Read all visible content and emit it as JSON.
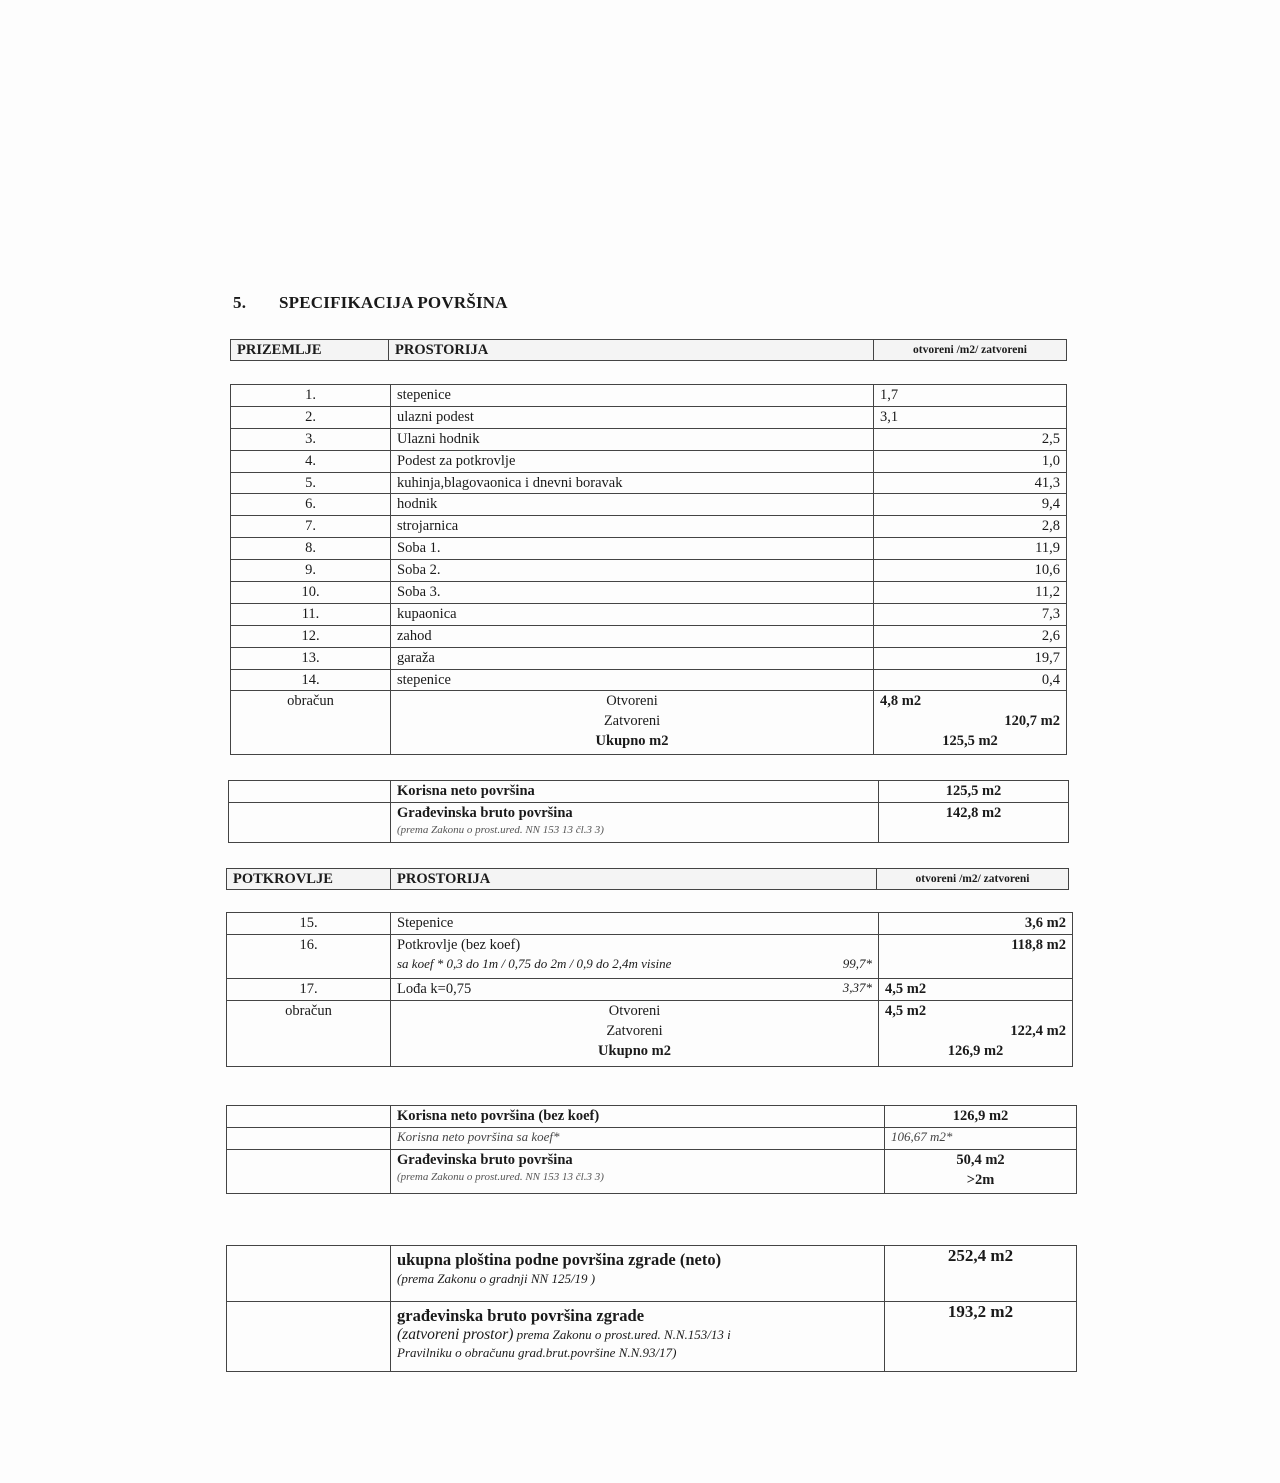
{
  "title": {
    "number": "5.",
    "text": "SPECIFIKACIJA POVRŠINA"
  },
  "prizemlje": {
    "header": {
      "floor": "PRIZEMLJE",
      "room": "PROSTORIJA",
      "area": "otvoreni   /m2/  zatvoreni"
    },
    "rooms": [
      {
        "no": "1.",
        "name": "stepenice",
        "open": "1,7",
        "closed": ""
      },
      {
        "no": "2.",
        "name": "ulazni podest",
        "open": "3,1",
        "closed": ""
      },
      {
        "no": "3.",
        "name": "Ulazni hodnik",
        "open": "",
        "closed": "2,5"
      },
      {
        "no": "4.",
        "name": "Podest za potkrovlje",
        "open": "",
        "closed": "1,0"
      },
      {
        "no": "5.",
        "name": "kuhinja,blagovaonica i dnevni boravak",
        "open": "",
        "closed": "41,3"
      },
      {
        "no": "6.",
        "name": "hodnik",
        "open": "",
        "closed": "9,4"
      },
      {
        "no": "7.",
        "name": "strojarnica",
        "open": "",
        "closed": "2,8"
      },
      {
        "no": "8.",
        "name": "Soba 1.",
        "open": "",
        "closed": "11,9"
      },
      {
        "no": "9.",
        "name": "Soba 2.",
        "open": "",
        "closed": "10,6"
      },
      {
        "no": "10.",
        "name": "Soba 3.",
        "open": "",
        "closed": "11,2"
      },
      {
        "no": "11.",
        "name": "kupaonica",
        "open": "",
        "closed": "7,3"
      },
      {
        "no": "12.",
        "name": "zahod",
        "open": "",
        "closed": "2,6"
      },
      {
        "no": "13.",
        "name": "garaža",
        "open": "",
        "closed": "19,7"
      },
      {
        "no": "14.",
        "name": "stepenice",
        "open": "",
        "closed": "0,4"
      }
    ],
    "summary": {
      "label": "obračun",
      "open_label": "Otvoreni",
      "closed_label": "Zatvoreni",
      "total_label": "Ukupno m2",
      "open": "4,8 m2",
      "closed": "120,7 m2",
      "total": "125,5 m2"
    },
    "areas": {
      "net_label": "Korisna neto površina",
      "net": "125,5 m2",
      "gross_label": "Građevinska bruto površina",
      "gross_note": "(prema Zakonu o prost.ured. NN 153 13 čl.3 3)",
      "gross": "142,8 m2"
    }
  },
  "potkrovlje": {
    "header": {
      "floor": "POTKROVLJE",
      "room": "PROSTORIJA",
      "area": "otvoreni   /m2/  zatvoreni"
    },
    "rooms": [
      {
        "no": "15.",
        "name": "Stepenice",
        "sub": "",
        "coef": "",
        "open": "",
        "closed": "3,6 m2"
      },
      {
        "no": "16.",
        "name": "Potkrovlje (bez koef)",
        "sub": "sa koef * 0,3 do 1m / 0,75 do 2m / 0,9 do 2,4m visine",
        "coef": "99,7*",
        "open": "",
        "closed": "118,8 m2"
      },
      {
        "no": "17.",
        "name": "Lođa k=0,75",
        "sub": "",
        "coef": "3,37*",
        "open": "4,5 m2",
        "closed": ""
      }
    ],
    "summary": {
      "label": "obračun",
      "open_label": "Otvoreni",
      "closed_label": "Zatvoreni",
      "total_label": "Ukupno m2",
      "open": "4,5 m2",
      "closed": "122,4 m2",
      "total": "126,9 m2"
    },
    "areas": {
      "net_label": "Korisna neto površina (bez koef)",
      "net": "126,9 m2",
      "net_coef_label": "Korisna neto površina sa koef*",
      "net_coef": "106,67 m2*",
      "gross_label": "Građevinska bruto površina",
      "gross_note": "(prema Zakonu o prost.ured. NN 153 13 čl.3 3)",
      "gross": "50,4 m2",
      "gross_sub": ">2m"
    }
  },
  "totals": {
    "net_label": "ukupna ploština podne površina zgrade (neto)",
    "net_note": "(prema Zakonu o gradnji NN 125/19 )",
    "net": "252,4 m2",
    "gross_label": "građevinska bruto površina zgrade",
    "gross_note_1": "(zatvoreni prostor)",
    "gross_note_2": " prema Zakonu o prost.ured. N.N.153/13 i",
    "gross_note_3": "Pravilniku o obračunu grad.brut.površine N.N.93/17)",
    "gross": "193,2 m2"
  }
}
